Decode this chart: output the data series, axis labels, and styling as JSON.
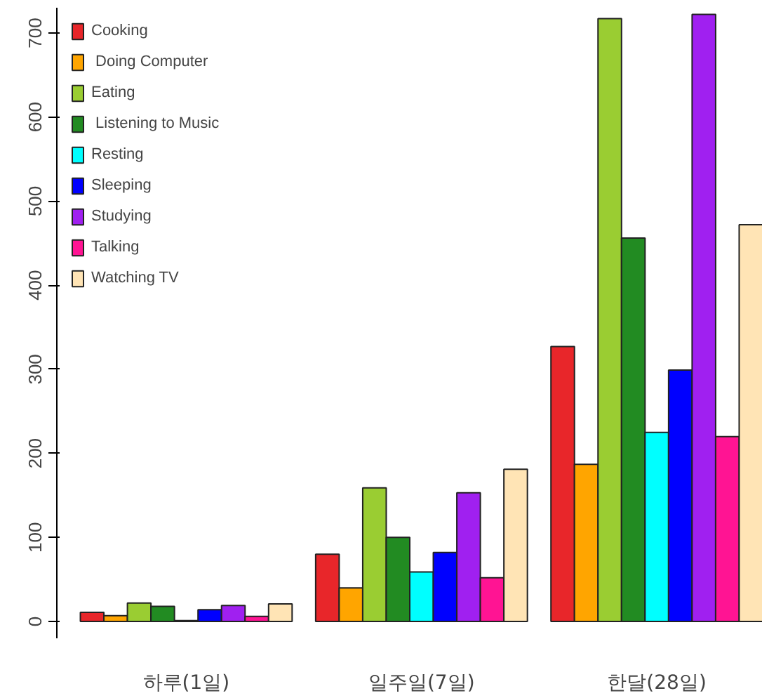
{
  "chart_data": {
    "type": "bar",
    "categories": [
      "하루(1일)",
      "일주일(7일)",
      "한달(28일)"
    ],
    "series": [
      {
        "name": "Cooking",
        "color": "#e8262a",
        "values": [
          11,
          80,
          327
        ]
      },
      {
        "name": " Doing Computer",
        "color": "#ffa500",
        "values": [
          7,
          40,
          187
        ]
      },
      {
        "name": "Eating",
        "color": "#9acd32",
        "values": [
          22,
          159,
          717
        ]
      },
      {
        "name": " Listening to Music",
        "color": "#228b22",
        "values": [
          18,
          100,
          456
        ]
      },
      {
        "name": "Resting",
        "color": "#00ffff",
        "values": [
          1,
          59,
          225
        ]
      },
      {
        "name": "Sleeping",
        "color": "#0000ff",
        "values": [
          14,
          82,
          299
        ]
      },
      {
        "name": "Studying",
        "color": "#a020f0",
        "values": [
          19,
          153,
          722
        ]
      },
      {
        "name": "Talking",
        "color": "#ff1493",
        "values": [
          6,
          52,
          220
        ]
      },
      {
        "name": "Watching TV",
        "color": "#ffe4b5",
        "values": [
          21,
          181,
          472
        ]
      }
    ],
    "ylim": [
      -20,
      730
    ],
    "yticks": [
      0,
      100,
      200,
      300,
      400,
      500,
      600,
      700
    ],
    "grid": false,
    "legend": "top left"
  }
}
